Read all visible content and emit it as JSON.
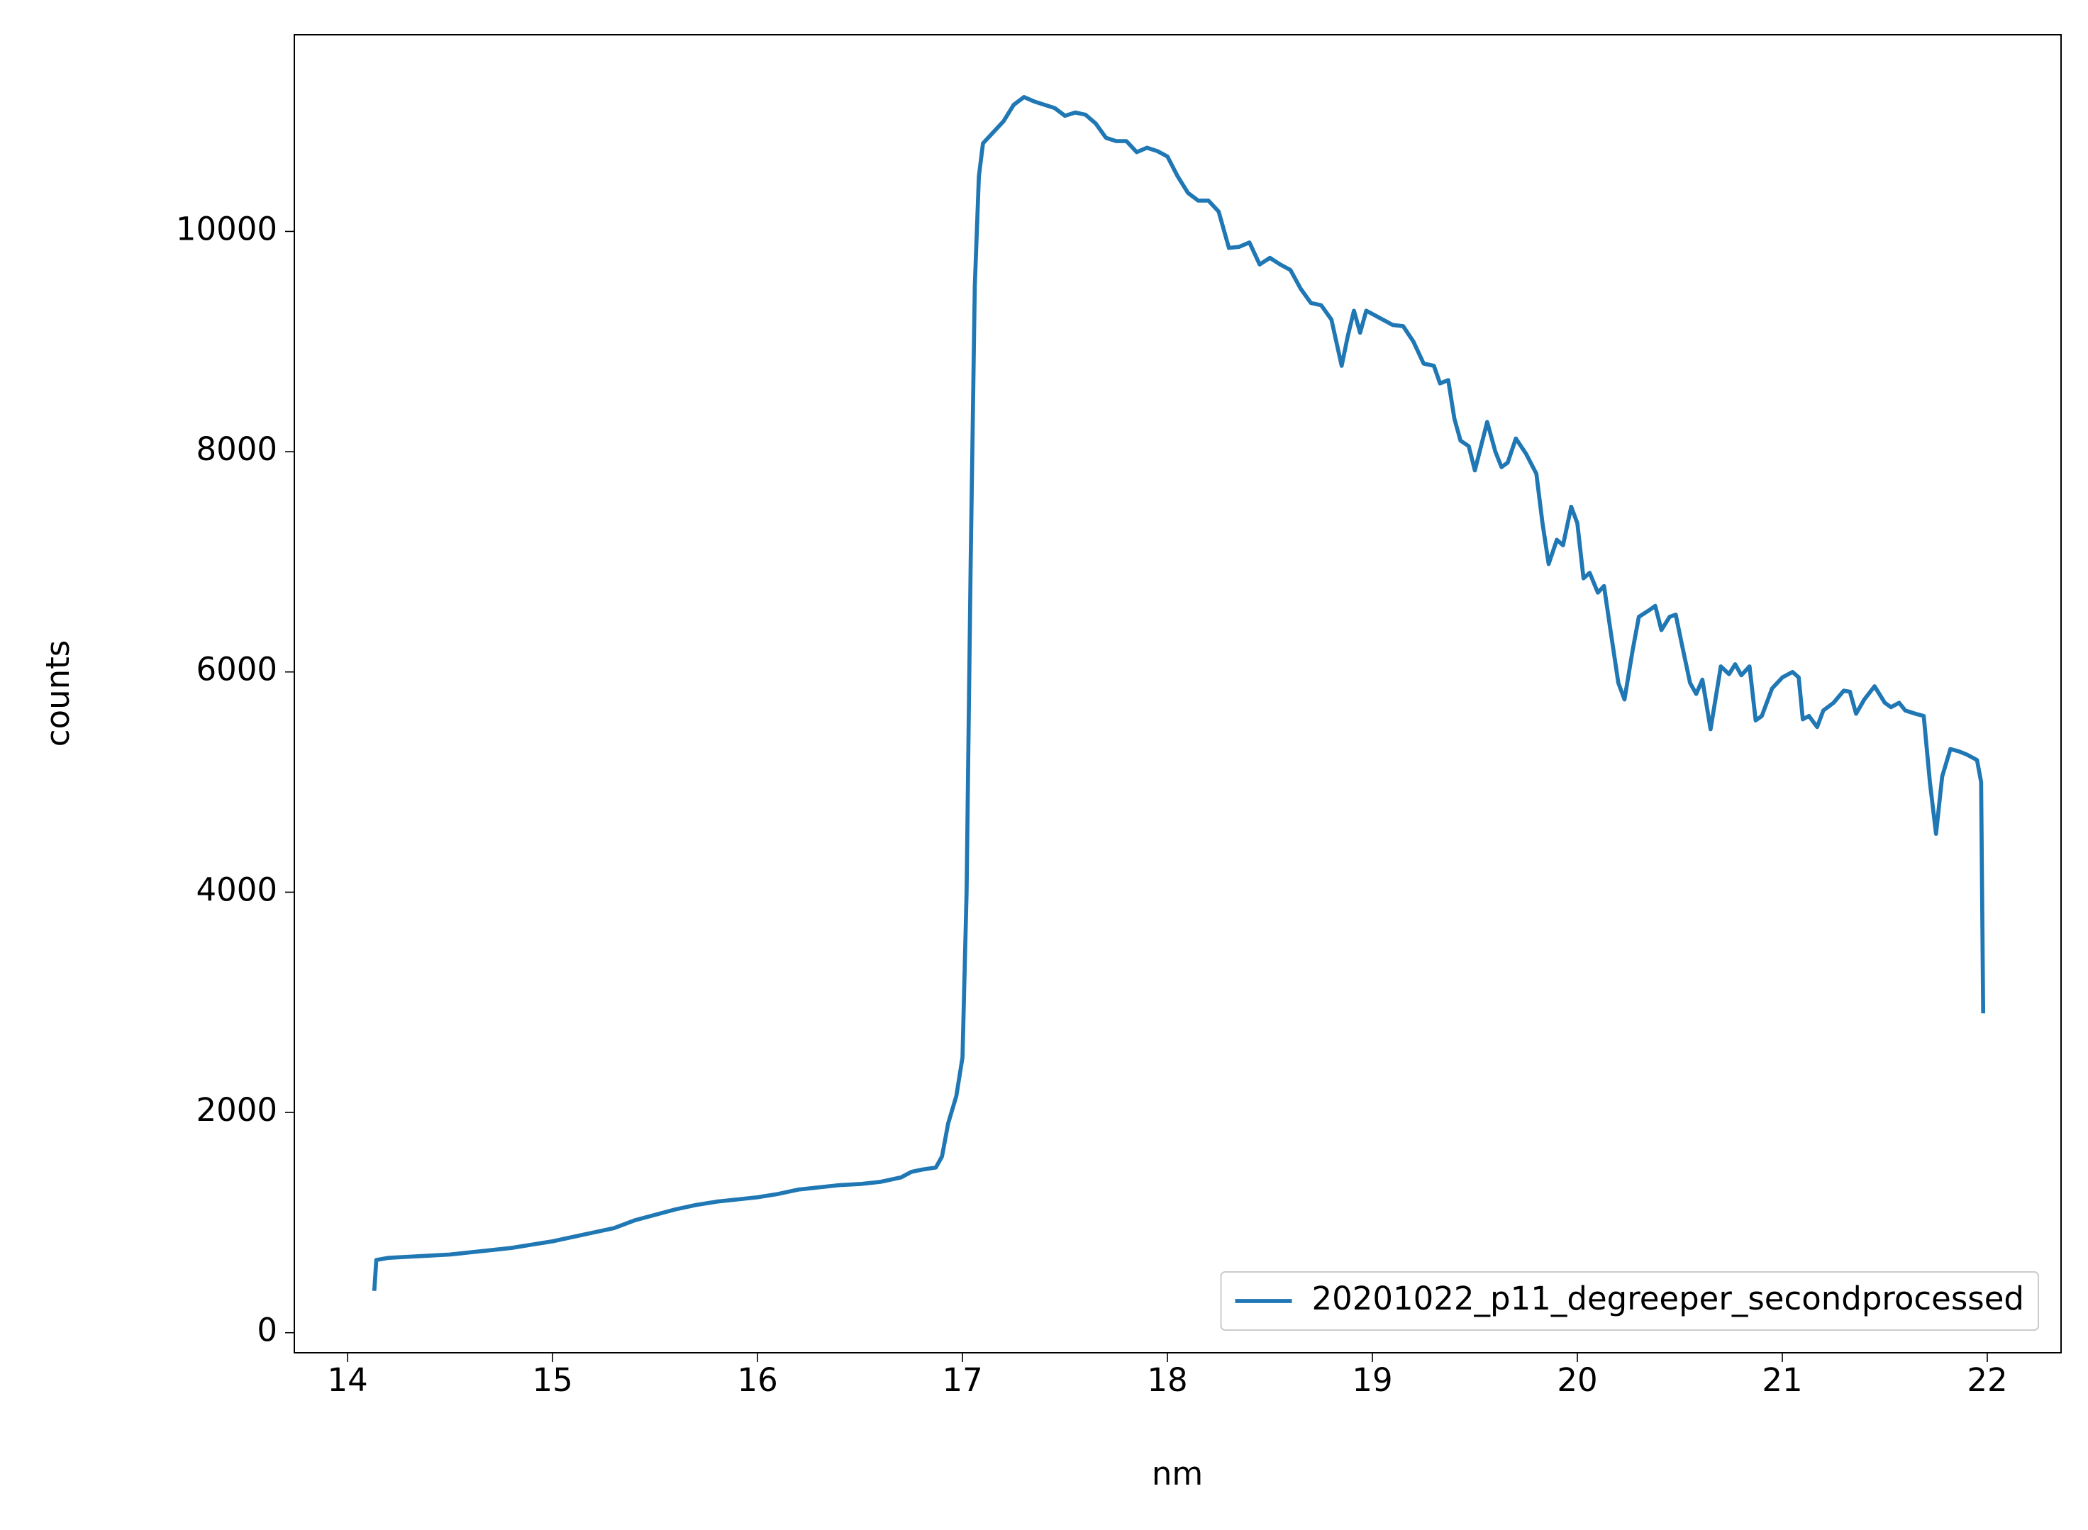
{
  "chart_data": {
    "type": "line",
    "x_label": "nm",
    "y_label": "counts",
    "x": [
      14.13,
      14.14,
      14.2,
      14.3,
      14.4,
      14.5,
      14.55,
      14.6,
      14.7,
      14.8,
      14.9,
      15.0,
      15.1,
      15.2,
      15.3,
      15.4,
      15.5,
      15.6,
      15.7,
      15.8,
      15.9,
      16.0,
      16.1,
      16.2,
      16.3,
      16.4,
      16.5,
      16.6,
      16.7,
      16.75,
      16.8,
      16.87,
      16.9,
      16.93,
      16.97,
      17.0,
      17.02,
      17.04,
      17.06,
      17.08,
      17.1,
      17.15,
      17.2,
      17.25,
      17.3,
      17.35,
      17.4,
      17.45,
      17.5,
      17.55,
      17.6,
      17.65,
      17.7,
      17.75,
      17.8,
      17.85,
      17.9,
      17.95,
      18.0,
      18.05,
      18.1,
      18.15,
      18.2,
      18.25,
      18.3,
      18.35,
      18.4,
      18.45,
      18.5,
      18.55,
      18.6,
      18.65,
      18.7,
      18.75,
      18.8,
      18.85,
      18.88,
      18.91,
      18.94,
      18.97,
      19.0,
      19.05,
      19.1,
      19.15,
      19.2,
      19.25,
      19.3,
      19.33,
      19.37,
      19.4,
      19.43,
      19.47,
      19.5,
      19.53,
      19.56,
      19.6,
      19.63,
      19.66,
      19.7,
      19.75,
      19.8,
      19.83,
      19.86,
      19.9,
      19.93,
      19.97,
      20.0,
      20.03,
      20.06,
      20.1,
      20.13,
      20.16,
      20.2,
      20.23,
      20.27,
      20.3,
      20.35,
      20.38,
      20.41,
      20.45,
      20.48,
      20.51,
      20.55,
      20.58,
      20.61,
      20.65,
      20.7,
      20.74,
      20.77,
      20.8,
      20.84,
      20.87,
      20.9,
      20.95,
      21.0,
      21.05,
      21.08,
      21.1,
      21.13,
      21.17,
      21.2,
      21.25,
      21.3,
      21.33,
      21.36,
      21.4,
      21.45,
      21.5,
      21.53,
      21.57,
      21.6,
      21.65,
      21.69,
      21.72,
      21.75,
      21.78,
      21.82,
      21.86,
      21.9,
      21.95,
      21.97,
      21.98
    ],
    "series": [
      {
        "name": "20201022_p11_degreeper_secondprocessed",
        "color": "#1f77b4",
        "values": [
          380,
          660,
          680,
          690,
          700,
          710,
          720,
          730,
          750,
          770,
          800,
          830,
          870,
          910,
          950,
          1020,
          1070,
          1120,
          1160,
          1190,
          1210,
          1230,
          1260,
          1300,
          1320,
          1340,
          1350,
          1370,
          1410,
          1460,
          1480,
          1500,
          1600,
          1900,
          2150,
          2500,
          4000,
          7000,
          9500,
          10500,
          10800,
          10900,
          11000,
          11150,
          11220,
          11180,
          11150,
          11120,
          11050,
          11080,
          11060,
          10980,
          10850,
          10820,
          10820,
          10720,
          10760,
          10730,
          10680,
          10500,
          10350,
          10280,
          10280,
          10180,
          9850,
          9860,
          9900,
          9700,
          9760,
          9700,
          9650,
          9480,
          9350,
          9330,
          9200,
          8780,
          9050,
          9280,
          9080,
          9280,
          9250,
          9200,
          9150,
          9140,
          9000,
          8800,
          8780,
          8620,
          8650,
          8300,
          8100,
          8050,
          7830,
          8050,
          8270,
          8000,
          7860,
          7900,
          8120,
          7980,
          7800,
          7350,
          6980,
          7200,
          7150,
          7500,
          7350,
          6850,
          6900,
          6720,
          6780,
          6400,
          5900,
          5750,
          6200,
          6500,
          6560,
          6600,
          6380,
          6500,
          6520,
          6250,
          5900,
          5800,
          5930,
          5480,
          6050,
          5980,
          6070,
          5970,
          6050,
          5560,
          5600,
          5850,
          5950,
          6000,
          5950,
          5570,
          5600,
          5500,
          5650,
          5720,
          5830,
          5820,
          5620,
          5750,
          5870,
          5720,
          5680,
          5720,
          5650,
          5620,
          5600,
          5000,
          4530,
          5050,
          5300,
          5280,
          5250,
          5200,
          5000,
          2900
        ]
      }
    ],
    "xlim": [
      13.74,
      22.36
    ],
    "xticks": [
      14,
      15,
      16,
      17,
      18,
      19,
      20,
      21,
      22
    ],
    "ylim": [
      -182,
      11786
    ],
    "yticks": [
      0,
      2000,
      4000,
      6000,
      8000,
      10000
    ],
    "grid": false,
    "legend": "lower right"
  }
}
